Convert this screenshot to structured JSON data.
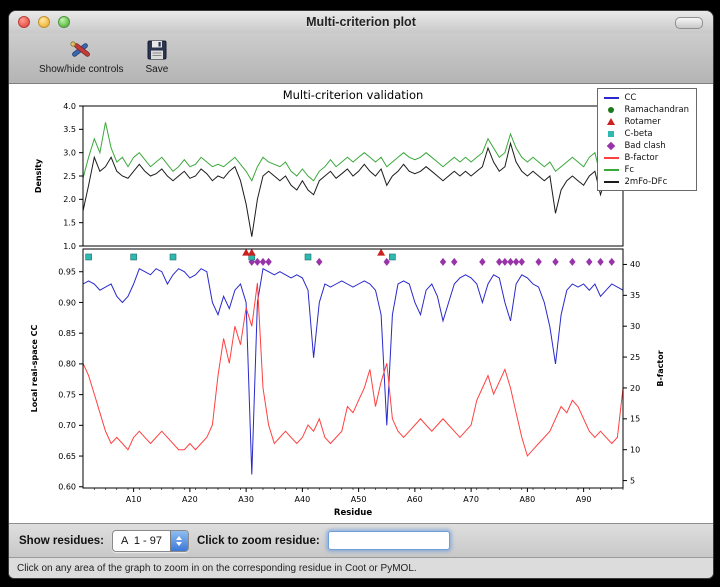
{
  "window": {
    "title": "Multi-criterion plot"
  },
  "toolbar": {
    "items": [
      {
        "label": "Show/hide controls",
        "icon": "tools-icon"
      },
      {
        "label": "Save",
        "icon": "save-icon"
      }
    ]
  },
  "plot": {
    "legend": [
      {
        "label": "CC",
        "type": "line",
        "color": "#2929cc"
      },
      {
        "label": "Ramachandran",
        "type": "circle",
        "color": "#1a7a1a"
      },
      {
        "label": "Rotamer",
        "type": "triangle",
        "color": "#cc2020"
      },
      {
        "label": "C-beta",
        "type": "square",
        "color": "#2fb8b0"
      },
      {
        "label": "Bad clash",
        "type": "diamond",
        "color": "#9933aa"
      },
      {
        "label": "B-factor",
        "type": "line",
        "color": "#ff4040"
      },
      {
        "label": "Fc",
        "type": "line",
        "color": "#3aa83a"
      },
      {
        "label": "2mFo-DFc",
        "type": "line",
        "color": "#1c1c1c"
      }
    ]
  },
  "chart_data": [
    {
      "type": "line",
      "title": "Multi-criterion validation",
      "ylabel": "Density",
      "ylim": [
        1.0,
        4.0
      ],
      "yticks": [
        "1.0",
        "1.5",
        "2.0",
        "2.5",
        "3.0",
        "3.5",
        "4.0"
      ],
      "x_start": 1,
      "x_end": 97,
      "series": [
        {
          "name": "Fc",
          "color": "#3aa83a",
          "values": [
            2.45,
            2.9,
            3.3,
            3.0,
            3.65,
            3.1,
            2.8,
            2.9,
            2.7,
            2.9,
            3.0,
            2.85,
            2.7,
            2.8,
            2.9,
            2.75,
            2.6,
            2.7,
            2.85,
            2.7,
            2.75,
            2.9,
            2.8,
            2.7,
            2.75,
            2.7,
            2.8,
            2.9,
            2.75,
            2.6,
            2.4,
            2.7,
            2.9,
            2.8,
            2.75,
            2.7,
            2.8,
            2.6,
            2.5,
            2.65,
            2.5,
            2.4,
            2.6,
            2.7,
            2.85,
            2.7,
            2.8,
            2.9,
            2.8,
            2.9,
            3.0,
            2.9,
            2.8,
            2.9,
            2.7,
            2.8,
            2.9,
            3.0,
            2.9,
            2.85,
            2.9,
            3.0,
            2.9,
            2.8,
            2.7,
            2.8,
            2.9,
            2.8,
            2.9,
            2.8,
            2.9,
            3.0,
            3.3,
            3.1,
            2.9,
            3.0,
            3.4,
            3.1,
            2.9,
            2.8,
            2.9,
            2.8,
            2.7,
            2.8,
            2.6,
            2.7,
            2.8,
            2.9,
            2.8,
            2.7,
            2.9,
            3.0,
            2.5,
            2.9,
            3.1,
            3.4,
            3.5
          ]
        },
        {
          "name": "2mFo-DFc",
          "color": "#1c1c1c",
          "values": [
            1.75,
            2.3,
            2.9,
            2.6,
            2.7,
            2.9,
            2.6,
            2.5,
            2.45,
            2.6,
            2.75,
            2.6,
            2.5,
            2.55,
            2.65,
            2.5,
            2.4,
            2.5,
            2.6,
            2.45,
            2.5,
            2.65,
            2.55,
            2.4,
            2.5,
            2.45,
            2.6,
            2.7,
            2.4,
            1.9,
            1.2,
            2.0,
            2.5,
            2.6,
            2.5,
            2.4,
            2.5,
            2.3,
            2.2,
            2.4,
            2.2,
            2.1,
            2.4,
            2.5,
            2.6,
            2.45,
            2.55,
            2.65,
            2.5,
            2.6,
            2.75,
            2.6,
            2.5,
            2.65,
            2.3,
            2.5,
            2.6,
            2.75,
            2.6,
            2.55,
            2.6,
            2.7,
            2.6,
            2.5,
            2.4,
            2.5,
            2.6,
            2.5,
            2.6,
            2.5,
            2.6,
            2.7,
            3.1,
            2.8,
            2.6,
            2.7,
            3.2,
            2.8,
            2.6,
            2.5,
            2.6,
            2.5,
            2.4,
            2.5,
            1.7,
            2.2,
            2.4,
            2.5,
            2.4,
            2.3,
            2.5,
            2.6,
            2.1,
            2.5,
            2.7,
            2.9,
            2.6
          ]
        }
      ]
    },
    {
      "type": "line+markers",
      "ylabel_left": "Local real-space CC",
      "ylabel_right": "B-factor",
      "xlabel": "Residue",
      "ylim_left": [
        0.598,
        0.987
      ],
      "ylim_right": [
        3.8,
        42.5
      ],
      "yticks_left": [
        "0.60",
        "0.65",
        "0.70",
        "0.75",
        "0.80",
        "0.85",
        "0.90",
        "0.95"
      ],
      "yticks_right": [
        "5",
        "10",
        "15",
        "20",
        "25",
        "30",
        "35",
        "40"
      ],
      "xticks": [
        {
          "v": 10,
          "label": "A10"
        },
        {
          "v": 20,
          "label": "A20"
        },
        {
          "v": 30,
          "label": "A30"
        },
        {
          "v": 40,
          "label": "A40"
        },
        {
          "v": 50,
          "label": "A50"
        },
        {
          "v": 60,
          "label": "A60"
        },
        {
          "v": 70,
          "label": "A70"
        },
        {
          "v": 80,
          "label": "A80"
        },
        {
          "v": 90,
          "label": "A90"
        }
      ],
      "series": [
        {
          "name": "CC",
          "axis": "left",
          "color": "#2929cc",
          "values": [
            0.93,
            0.935,
            0.93,
            0.92,
            0.925,
            0.93,
            0.91,
            0.9,
            0.91,
            0.93,
            0.955,
            0.95,
            0.945,
            0.955,
            0.95,
            0.93,
            0.945,
            0.955,
            0.95,
            0.94,
            0.945,
            0.955,
            0.95,
            0.9,
            0.88,
            0.91,
            0.89,
            0.92,
            0.93,
            0.9,
            0.62,
            0.9,
            0.955,
            0.95,
            0.945,
            0.95,
            0.945,
            0.94,
            0.945,
            0.94,
            0.92,
            0.81,
            0.9,
            0.93,
            0.925,
            0.93,
            0.935,
            0.93,
            0.925,
            0.93,
            0.935,
            0.93,
            0.92,
            0.88,
            0.7,
            0.88,
            0.93,
            0.935,
            0.93,
            0.9,
            0.88,
            0.92,
            0.93,
            0.91,
            0.87,
            0.9,
            0.93,
            0.94,
            0.945,
            0.94,
            0.93,
            0.9,
            0.93,
            0.945,
            0.94,
            0.9,
            0.87,
            0.93,
            0.945,
            0.94,
            0.93,
            0.925,
            0.9,
            0.86,
            0.8,
            0.88,
            0.92,
            0.93,
            0.925,
            0.93,
            0.92,
            0.93,
            0.91,
            0.92,
            0.93,
            0.925,
            0.92
          ]
        },
        {
          "name": "B-factor",
          "axis": "right",
          "color": "#ff4040",
          "values": [
            24,
            22,
            19,
            16,
            13,
            11,
            12,
            11,
            10,
            12,
            13,
            12,
            11,
            12,
            13,
            12,
            11,
            10,
            10,
            11,
            10,
            11,
            12,
            14,
            22,
            28,
            24,
            30,
            27,
            33,
            30,
            37,
            20,
            14,
            11,
            12,
            13,
            12,
            11,
            12,
            14,
            13,
            15,
            12,
            11,
            12,
            13,
            17,
            16,
            18,
            20,
            23,
            17,
            21,
            24,
            15,
            13,
            12,
            13,
            14,
            15,
            14,
            13,
            14,
            15,
            14,
            13,
            12,
            13,
            14,
            18,
            20,
            22,
            19,
            21,
            23,
            20,
            16,
            12,
            9,
            10,
            11,
            12,
            13,
            15,
            17,
            16,
            18,
            17,
            15,
            13,
            12,
            13,
            12,
            11,
            12,
            20
          ]
        }
      ],
      "markers": {
        "rotamer": {
          "shape": "triangle",
          "color": "#cc2020",
          "y": 0.981,
          "residues": [
            30,
            31,
            54
          ]
        },
        "cbeta": {
          "shape": "square",
          "color": "#2fb8b0",
          "y": 0.974,
          "residues": [
            2,
            10,
            17,
            31,
            41,
            56
          ]
        },
        "bad_clash": {
          "shape": "diamond",
          "color": "#9933aa",
          "y": 0.966,
          "residues": [
            31,
            32,
            33,
            34,
            43,
            55,
            65,
            67,
            72,
            75,
            76,
            77,
            78,
            79,
            82,
            85,
            88,
            91,
            93,
            95
          ]
        },
        "ramachandran": {
          "shape": "circle",
          "color": "#1a7a1a",
          "y": 0.981,
          "residues": []
        }
      }
    }
  ],
  "controls": {
    "show_residues_label": "Show residues:",
    "range_value": "A  1 - 97",
    "zoom_label": "Click to zoom residue:",
    "zoom_value": ""
  },
  "status": {
    "message": "Click on any area of the graph to zoom in on the corresponding residue in Coot or PyMOL."
  }
}
